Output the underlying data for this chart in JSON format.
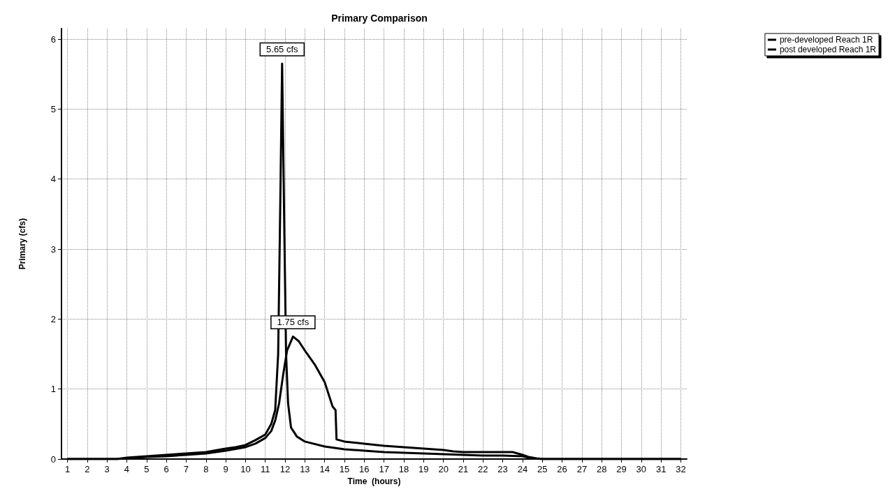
{
  "chart_data": {
    "type": "line",
    "title": "Primary Comparison",
    "xlabel": "Time  (hours)",
    "ylabel": "Primary (cfs)",
    "xlim": [
      0.7,
      32.3
    ],
    "xticks": [
      1,
      2,
      3,
      4,
      5,
      6,
      7,
      8,
      9,
      10,
      11,
      12,
      13,
      14,
      15,
      16,
      17,
      18,
      19,
      20,
      21,
      22,
      23,
      24,
      25,
      26,
      27,
      28,
      29,
      30,
      31,
      32
    ],
    "ylim": [
      0,
      6.15
    ],
    "yticks": [
      0,
      1,
      2,
      3,
      4,
      5,
      6
    ],
    "grid": true,
    "legend": "top right",
    "marker": "none",
    "line_style": "solid",
    "series": [
      {
        "name": "pre-developed Reach 1R",
        "color": "#000000",
        "x": [
          1,
          3.5,
          4,
          5,
          6,
          7,
          8,
          9,
          9.5,
          10,
          10.5,
          11,
          11.3,
          11.5,
          11.65,
          11.75,
          11.85,
          11.95,
          12.05,
          12.15,
          12.3,
          12.6,
          13,
          14,
          15,
          16,
          17,
          18,
          19,
          20,
          21,
          22,
          23,
          24,
          24.5,
          25,
          32
        ],
        "values": [
          0,
          0,
          0.02,
          0.04,
          0.06,
          0.08,
          0.1,
          0.15,
          0.17,
          0.2,
          0.27,
          0.35,
          0.5,
          0.7,
          1.5,
          3.5,
          5.65,
          3.5,
          1.5,
          0.8,
          0.45,
          0.32,
          0.25,
          0.18,
          0.14,
          0.12,
          0.1,
          0.09,
          0.08,
          0.07,
          0.06,
          0.05,
          0.05,
          0.04,
          0.01,
          0,
          0
        ]
      },
      {
        "name": "post developed Reach 1R",
        "color": "#000000",
        "x": [
          1,
          3.5,
          4,
          5,
          6,
          7,
          8,
          9,
          10,
          10.5,
          11,
          11.3,
          11.5,
          11.7,
          11.9,
          12.1,
          12.4,
          12.7,
          13,
          13.5,
          14,
          14.4,
          14.55,
          14.6,
          15,
          16,
          17,
          18,
          19,
          20,
          20.5,
          21,
          22,
          23,
          23.5,
          24,
          24.3,
          24.7,
          25,
          32
        ],
        "values": [
          0,
          0,
          0.01,
          0.03,
          0.04,
          0.06,
          0.08,
          0.12,
          0.17,
          0.22,
          0.3,
          0.4,
          0.55,
          0.8,
          1.2,
          1.55,
          1.75,
          1.68,
          1.55,
          1.35,
          1.1,
          0.75,
          0.7,
          0.28,
          0.25,
          0.22,
          0.19,
          0.17,
          0.15,
          0.13,
          0.11,
          0.1,
          0.1,
          0.1,
          0.1,
          0.06,
          0.03,
          0.01,
          0,
          0
        ]
      }
    ],
    "annotations": [
      {
        "text": "5.65 cfs",
        "x": 11.85,
        "y": 5.65
      },
      {
        "text": "1.75 cfs",
        "x": 12.4,
        "y": 1.75
      }
    ]
  }
}
